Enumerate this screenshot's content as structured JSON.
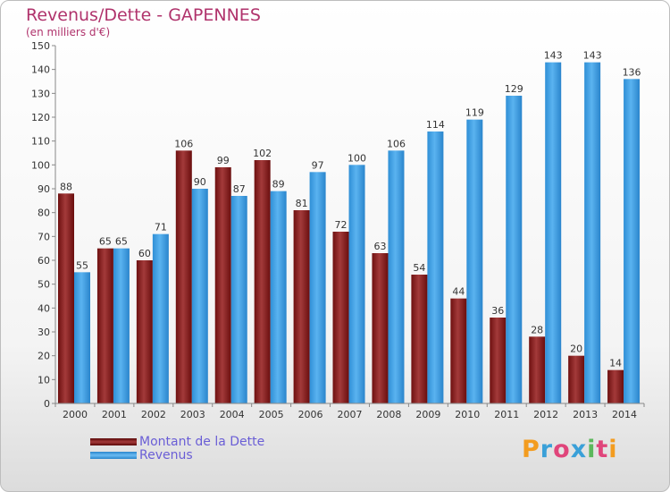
{
  "title": "Revenus/Dette - GAPENNES",
  "subtitle": "(en milliers d'€)",
  "logo": {
    "text": "Proxiti",
    "colors": [
      "#f39c1f",
      "#3aa0d8",
      "#e0457b",
      "#3aa0d8",
      "#5cb85c",
      "#e0457b",
      "#f39c1f"
    ]
  },
  "colors": {
    "dette": "#8b1c1c",
    "revenus": "#3d9fe3",
    "title": "#b0336c",
    "legend_text": "#6a5ed6"
  },
  "chart_data": {
    "type": "bar",
    "title": "Revenus/Dette - GAPENNES",
    "subtitle": "(en milliers d'€)",
    "xlabel": "",
    "ylabel": "",
    "ylim": [
      0,
      150
    ],
    "yticks": [
      0,
      10,
      20,
      30,
      40,
      50,
      60,
      70,
      80,
      90,
      100,
      110,
      120,
      130,
      140,
      150
    ],
    "grid": false,
    "legend_position": "bottom-left",
    "categories": [
      "2000",
      "2001",
      "2002",
      "2003",
      "2004",
      "2005",
      "2006",
      "2007",
      "2008",
      "2009",
      "2010",
      "2011",
      "2012",
      "2013",
      "2014"
    ],
    "series": [
      {
        "name": "Montant de la Dette",
        "color": "#8b1c1c",
        "values": [
          88,
          65,
          60,
          106,
          99,
          102,
          81,
          72,
          63,
          54,
          44,
          36,
          28,
          20,
          14
        ]
      },
      {
        "name": "Revenus",
        "color": "#3d9fe3",
        "values": [
          55,
          65,
          71,
          90,
          87,
          89,
          97,
          100,
          106,
          114,
          119,
          129,
          143,
          143,
          136
        ]
      }
    ]
  }
}
